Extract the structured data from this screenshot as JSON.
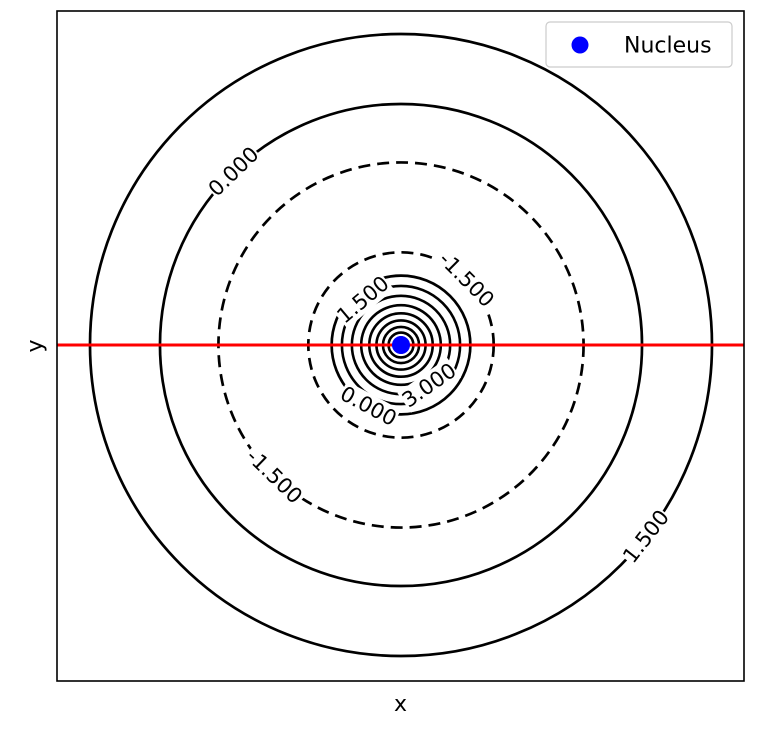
{
  "chart_data": {
    "type": "contour",
    "title": "",
    "xlabel": "x",
    "ylabel": "y",
    "xticks": [],
    "yticks": [],
    "grid": false,
    "legend": {
      "placement": "top-right",
      "entries": [
        {
          "label": "Nucleus",
          "marker": "circle",
          "color": "#0000ff"
        }
      ]
    },
    "nucleus": {
      "label": "Nucleus",
      "x": 0,
      "y": 0,
      "color": "#0000ff"
    },
    "reference_line": {
      "orientation": "horizontal",
      "y": 0,
      "color": "#ff0000"
    },
    "contours": [
      {
        "level": 1.5,
        "radius": 1.0,
        "style": "solid"
      },
      {
        "level": 0.0,
        "radius": 0.775,
        "style": "solid"
      },
      {
        "level": -1.5,
        "radius": 0.587,
        "style": "dashed"
      },
      {
        "level": -1.5,
        "radius": 0.298,
        "style": "dashed"
      },
      {
        "level": 0.0,
        "radius": 0.223,
        "style": "solid"
      },
      {
        "level": 1.5,
        "radius": 0.19,
        "style": "solid"
      },
      {
        "level": 3.0,
        "radius": 0.158,
        "style": "solid"
      },
      {
        "level": 4.5,
        "radius": 0.128,
        "style": "solid"
      },
      {
        "level": 6.0,
        "radius": 0.102,
        "style": "solid"
      },
      {
        "level": 7.5,
        "radius": 0.079,
        "style": "solid"
      },
      {
        "level": 9.0,
        "radius": 0.058,
        "style": "solid"
      },
      {
        "level": 10.5,
        "radius": 0.04,
        "style": "solid"
      },
      {
        "level": 12.0,
        "radius": 0.024,
        "style": "solid"
      }
    ],
    "contour_labels": [
      {
        "text": "0.000",
        "ring": 1,
        "angle_deg": 134
      },
      {
        "text": "1.500",
        "ring": 0,
        "angle_deg": -38
      },
      {
        "text": "-1.500",
        "ring": 2,
        "angle_deg": -134
      },
      {
        "text": "-1.500",
        "ring": 3,
        "angle_deg": 45
      },
      {
        "text": "1.500",
        "ring": 5,
        "angle_deg": 130
      },
      {
        "text": "0.000",
        "ring": 4,
        "angle_deg": -118
      },
      {
        "text": "3.000",
        "ring": 6,
        "angle_deg": -55
      }
    ]
  },
  "colors": {
    "contour": "#000000",
    "nucleus": "#0000ff",
    "reference_line": "#ff0000",
    "frame": "#000000"
  }
}
